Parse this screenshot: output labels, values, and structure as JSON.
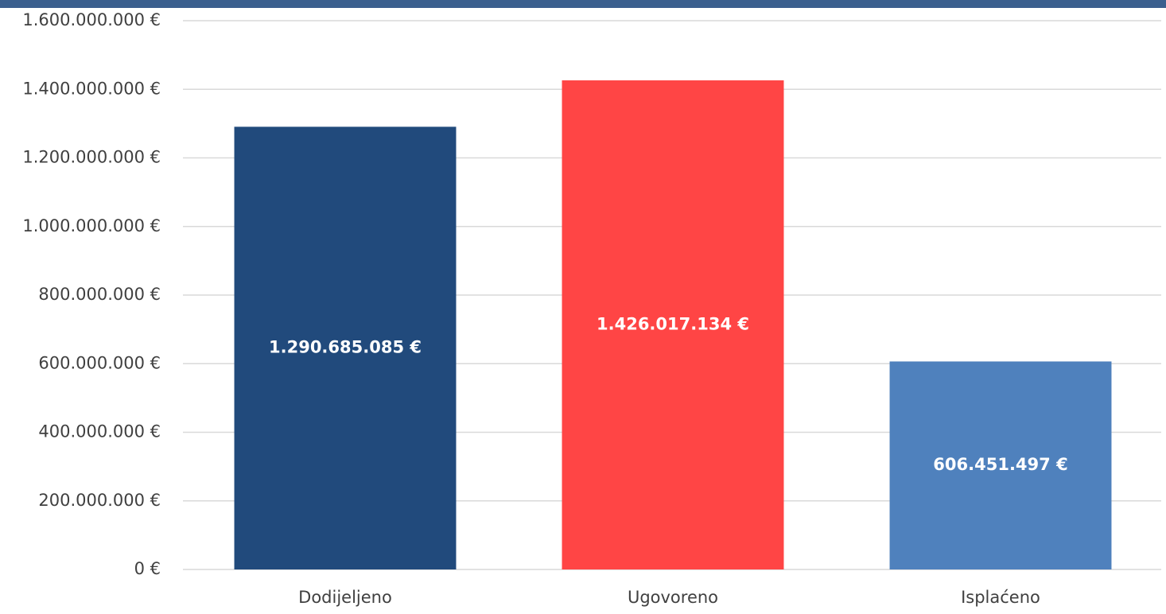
{
  "chart_data": {
    "type": "bar",
    "categories": [
      "Dodijeljeno",
      "Ugovoreno",
      "Isplaćeno"
    ],
    "values": [
      1290685085,
      1426017134,
      606451497
    ],
    "value_labels": [
      "1.290.685.085 €",
      "1.426.017.134 €",
      "606.451.497 €"
    ],
    "colors": [
      "#214a7c",
      "#ff4545",
      "#4f81bd"
    ],
    "ylim": [
      0,
      1600000000
    ],
    "yticks": [
      {
        "value": 0,
        "label": "0 €"
      },
      {
        "value": 200000000,
        "label": "200.000.000 €"
      },
      {
        "value": 400000000,
        "label": "400.000.000 €"
      },
      {
        "value": 600000000,
        "label": "600.000.000 €"
      },
      {
        "value": 800000000,
        "label": "800.000.000 €"
      },
      {
        "value": 1000000000,
        "label": "1.000.000.000 €"
      },
      {
        "value": 1200000000,
        "label": "1.200.000.000 €"
      },
      {
        "value": 1400000000,
        "label": "1.400.000.000 €"
      },
      {
        "value": 1600000000,
        "label": "1.600.000.000 €"
      }
    ],
    "grid": true
  }
}
